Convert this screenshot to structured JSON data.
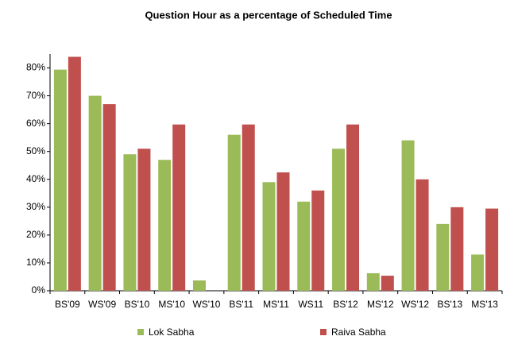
{
  "chart_data": {
    "type": "bar",
    "title": "Question Hour as a percentage of Scheduled Time",
    "categories": [
      "BS'09",
      "WS'09",
      "BS'10",
      "MS'10",
      "WS'10",
      "BS'11",
      "MS'11",
      "WS11",
      "BS'12",
      "MS'12",
      "WS'12",
      "BS'13",
      "MS'13"
    ],
    "series": [
      {
        "name": "Lok Sabha",
        "color": "#9bbb59",
        "values": [
          79.4,
          70,
          49,
          47,
          3.7,
          56,
          39,
          32,
          51,
          6.3,
          54,
          24,
          13
        ]
      },
      {
        "name": "Raiva Sabha",
        "color": "#c0504d",
        "values": [
          84,
          67,
          51,
          59.7,
          0,
          59.7,
          42.5,
          36,
          59.7,
          5.4,
          40,
          30,
          29.5
        ]
      }
    ],
    "ylim": [
      0,
      85
    ],
    "yticks": [
      {
        "value": 0,
        "label": "0%"
      },
      {
        "value": 10,
        "label": "10%"
      },
      {
        "value": 20,
        "label": "20%"
      },
      {
        "value": 30,
        "label": "30%"
      },
      {
        "value": 40,
        "label": "40%"
      },
      {
        "value": 50,
        "label": "50%"
      },
      {
        "value": 60,
        "label": "60%"
      },
      {
        "value": 70,
        "label": "70%"
      },
      {
        "value": 80,
        "label": "80%"
      }
    ],
    "grid": false,
    "legend": "bottom"
  }
}
